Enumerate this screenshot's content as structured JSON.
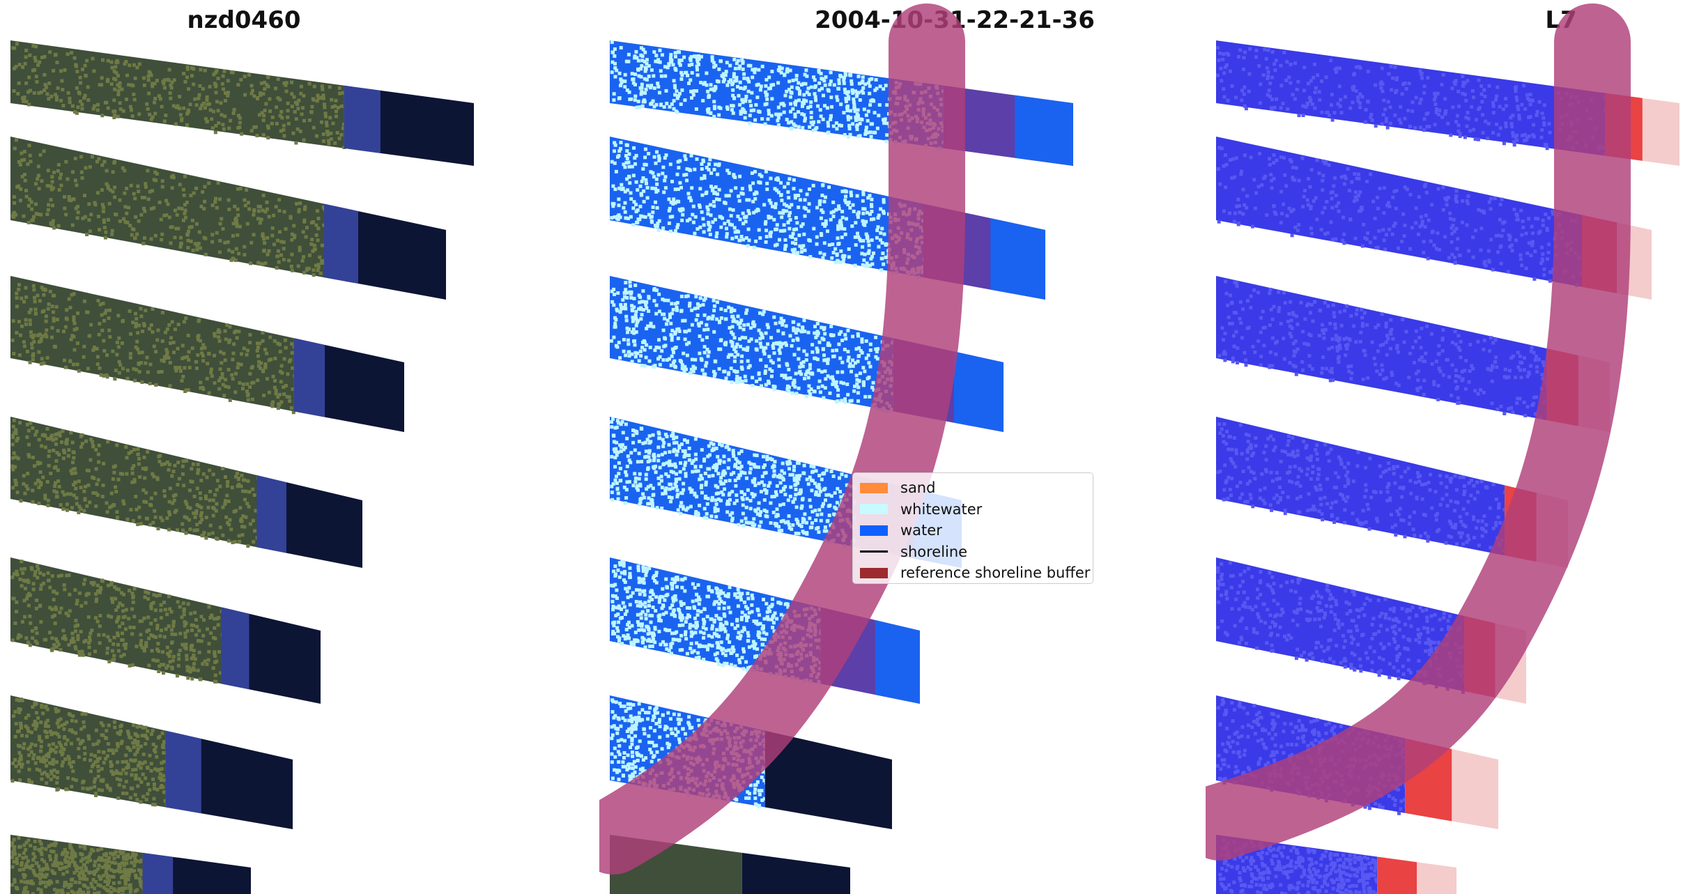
{
  "panels": [
    {
      "title": "nzd0460"
    },
    {
      "title": "2004-10-31-22-21-36"
    },
    {
      "title": "L7"
    }
  ],
  "legend": {
    "items": [
      {
        "label": "sand",
        "kind": "patch",
        "color": "#ff8c3a"
      },
      {
        "label": "whitewater",
        "kind": "patch",
        "color": "#c8faff"
      },
      {
        "label": "water",
        "kind": "patch",
        "color": "#1060ff"
      },
      {
        "label": "shoreline",
        "kind": "line",
        "color": "#000000"
      },
      {
        "label": "reference shoreline buffer",
        "kind": "patch",
        "color": "#9c2a2e"
      }
    ]
  },
  "colors": {
    "land_rgb": "#3f4f3a",
    "water_rgb": "#0d1535",
    "water_class": "#1a63f0",
    "whitewater_class": "#bff5ff",
    "index_blue": "#3a3ae8",
    "index_red": "#e62020",
    "buffer": "#b0407a"
  }
}
